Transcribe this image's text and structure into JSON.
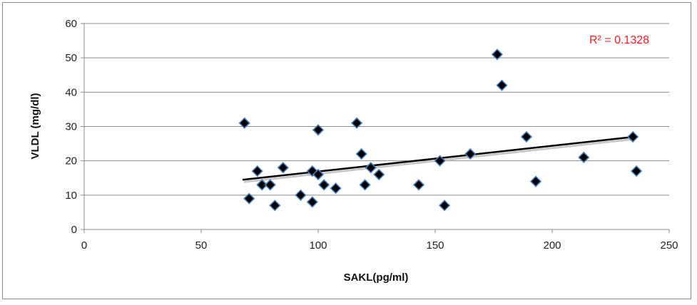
{
  "chart_data": {
    "type": "scatter",
    "xlabel": "SAKL(pg/ml)",
    "ylabel": "VLDL  (mg/dl)",
    "xlim": [
      0,
      250
    ],
    "ylim": [
      0,
      60
    ],
    "x_ticks": [
      "0",
      "50",
      "100",
      "150",
      "200",
      "250"
    ],
    "y_ticks": [
      "0",
      "10",
      "20",
      "30",
      "40",
      "50",
      "60"
    ],
    "grid": "horizontal",
    "marker": "diamond",
    "marker_color": "#000000",
    "marker_edge_color": "#4a7ebb",
    "series": [
      {
        "points": [
          [
            68.5,
            31
          ],
          [
            70.5,
            9
          ],
          [
            74,
            17
          ],
          [
            76,
            13
          ],
          [
            79.5,
            13
          ],
          [
            81.5,
            7
          ],
          [
            85,
            18
          ],
          [
            92.5,
            10
          ],
          [
            97.5,
            8
          ],
          [
            97.5,
            17
          ],
          [
            100,
            29
          ],
          [
            100,
            16
          ],
          [
            102.5,
            13
          ],
          [
            107.5,
            12
          ],
          [
            116.5,
            31
          ],
          [
            118.5,
            22
          ],
          [
            120,
            13
          ],
          [
            122.5,
            18
          ],
          [
            126,
            16
          ],
          [
            143,
            13
          ],
          [
            152,
            20
          ],
          [
            154,
            7
          ],
          [
            165,
            22
          ],
          [
            176.5,
            51
          ],
          [
            178.5,
            42
          ],
          [
            189,
            27
          ],
          [
            193,
            14
          ],
          [
            213.5,
            21
          ],
          [
            234.5,
            27
          ],
          [
            236,
            17
          ]
        ]
      }
    ],
    "trendline": {
      "type": "linear",
      "x": [
        68,
        235
      ],
      "y": [
        14.5,
        27
      ],
      "color": "#000000"
    },
    "annotations": [
      {
        "text": "R² = 0.1328",
        "color": "#ff2020",
        "position": "top-right"
      }
    ]
  }
}
